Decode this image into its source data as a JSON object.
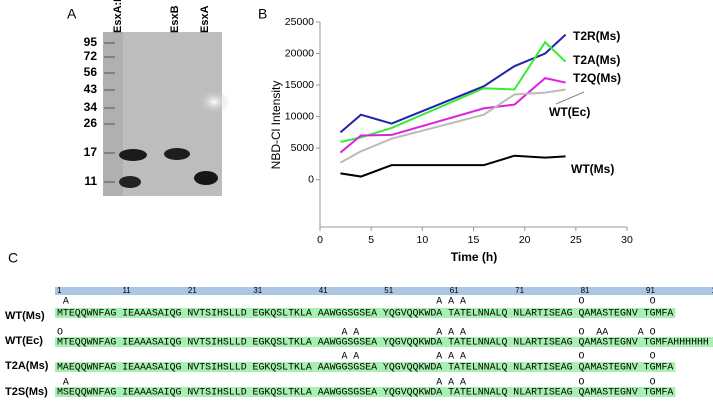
{
  "panel_labels": [
    "A",
    "B",
    "C"
  ],
  "gel": {
    "lanes": [
      "EsxA:B",
      "EsxB",
      "EsxA"
    ],
    "markers": [
      95,
      72,
      56,
      43,
      34,
      26,
      17,
      11
    ]
  },
  "chart_data": {
    "type": "line",
    "xlabel": "Time (h)",
    "ylabel": "NBD-Cl Intensity",
    "x": [
      2,
      4,
      7,
      16,
      19,
      22,
      24
    ],
    "series": [
      {
        "name": "WT(Ms)",
        "color": "#000000",
        "values": [
          1000,
          500,
          2300,
          2300,
          3800,
          3500,
          3700
        ]
      },
      {
        "name": "T2R(Ms)",
        "color": "#2222b0",
        "values": [
          7500,
          10300,
          8900,
          14800,
          18000,
          20000,
          23000
        ]
      },
      {
        "name": "T2A(Ms)",
        "color": "#33ee33",
        "values": [
          6000,
          6700,
          8200,
          14500,
          14300,
          21800,
          18700
        ]
      },
      {
        "name": "T2Q(Ms)",
        "color": "#e020e0",
        "values": [
          4300,
          7000,
          7100,
          11300,
          11900,
          16100,
          15400
        ]
      },
      {
        "name": "WT(Ec)",
        "color": "#bbbbbb",
        "values": [
          2700,
          4500,
          6500,
          10300,
          13500,
          13800,
          14300
        ]
      }
    ],
    "xlim": [
      0,
      30
    ],
    "ylim": [
      -7500,
      25000
    ],
    "xticks": [
      0,
      5,
      10,
      15,
      20,
      25,
      30
    ],
    "yticks": [
      0,
      5000,
      10000,
      15000,
      20000,
      25000
    ]
  },
  "alignment": {
    "ruler": [
      1,
      11,
      21,
      31,
      41,
      51,
      61,
      71,
      81,
      91,
      10
    ],
    "rows": [
      {
        "name": "WT(Ms)",
        "annotation": " A                                                              A A A                   O           O",
        "sequence": "MTEQQWNFAG IEAAASAIQG NVTSIHSLLD EGKQSLTKLA AAWGGSGSEA YQGVQQKWDA TATELNNALQ NLARTISEAG QAMASTEGNV TGMFA"
      },
      {
        "name": "WT(Ec)",
        "annotation": "O                                               A A             A A A                   O  AA     A O",
        "sequence": "MTEQQWNFAG IEAAASAIQG NVTSIHSLLD EGKQSLTKLA AAWGGSGSEA YQGVQQKWDA TATELNNALQ NLARTISEAG QAMASTEGNV TGMFAHHHHHH H"
      },
      {
        "name": "T2A(Ms)",
        "annotation": "                                                A A             A A A                   O           O",
        "sequence": "MAEQQWNFAG IEAAASAIQG NVTSIHSLLD EGKQSLTKLA AAWGGSGSEA YQGVQQKWDA TATELNNALQ NLARTISEAG QAMASTEGNV TGMFA"
      },
      {
        "name": "T2S(Ms)",
        "annotation": " A                                                              A A A                   O           O",
        "sequence": "MSEQQWNFAG IEAAASAIQG NVTSIHSLLD EGKQSLTKLA AAWGGSGSEA YQGVQQKWDA TATELNNALQ NLARTISEAG QAMASTEGNV TGMFA"
      }
    ]
  }
}
